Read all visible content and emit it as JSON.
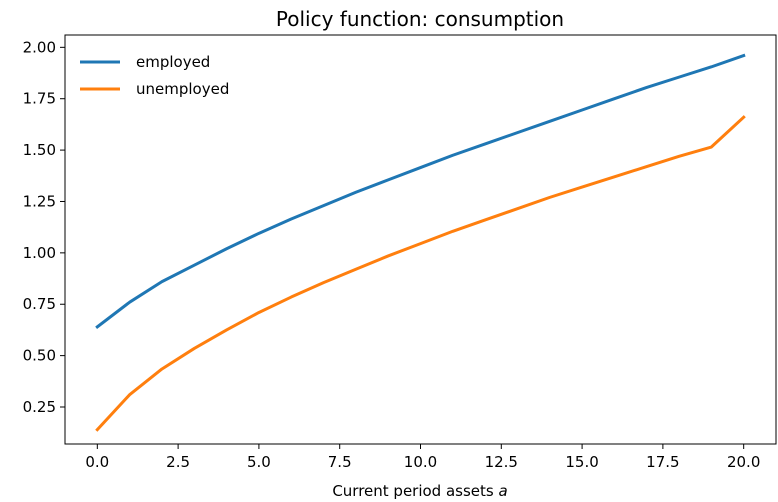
{
  "chart_data": {
    "type": "line",
    "title": "Policy function: consumption",
    "xlabel": "Current period assets ",
    "xlabel_var": "a",
    "ylabel": "",
    "xlim": [
      -1.0,
      21.0
    ],
    "ylim": [
      0.07,
      2.06
    ],
    "xticks": [
      0.0,
      2.5,
      5.0,
      7.5,
      10.0,
      12.5,
      15.0,
      17.5,
      20.0
    ],
    "xtick_labels": [
      "0.0",
      "2.5",
      "5.0",
      "7.5",
      "10.0",
      "12.5",
      "15.0",
      "17.5",
      "20.0"
    ],
    "yticks": [
      0.25,
      0.5,
      0.75,
      1.0,
      1.25,
      1.5,
      1.75,
      2.0
    ],
    "ytick_labels": [
      "0.25",
      "0.50",
      "0.75",
      "1.00",
      "1.25",
      "1.50",
      "1.75",
      "2.00"
    ],
    "grid": false,
    "legend_position": "top-left",
    "x": [
      0,
      1,
      2,
      3,
      4,
      5,
      6,
      7,
      8,
      9,
      10,
      11,
      12,
      13,
      14,
      15,
      16,
      17,
      18,
      19,
      20
    ],
    "series": [
      {
        "name": "employed",
        "color": "#1f77b4",
        "values": [
          0.64,
          0.76,
          0.86,
          0.94,
          1.02,
          1.095,
          1.165,
          1.23,
          1.295,
          1.355,
          1.415,
          1.475,
          1.53,
          1.585,
          1.64,
          1.695,
          1.75,
          1.805,
          1.855,
          1.905,
          1.96
        ]
      },
      {
        "name": "unemployed",
        "color": "#ff7f0e",
        "values": [
          0.14,
          0.31,
          0.435,
          0.535,
          0.625,
          0.71,
          0.785,
          0.855,
          0.92,
          0.985,
          1.045,
          1.105,
          1.16,
          1.215,
          1.27,
          1.32,
          1.37,
          1.42,
          1.47,
          1.515,
          1.66
        ]
      }
    ]
  }
}
